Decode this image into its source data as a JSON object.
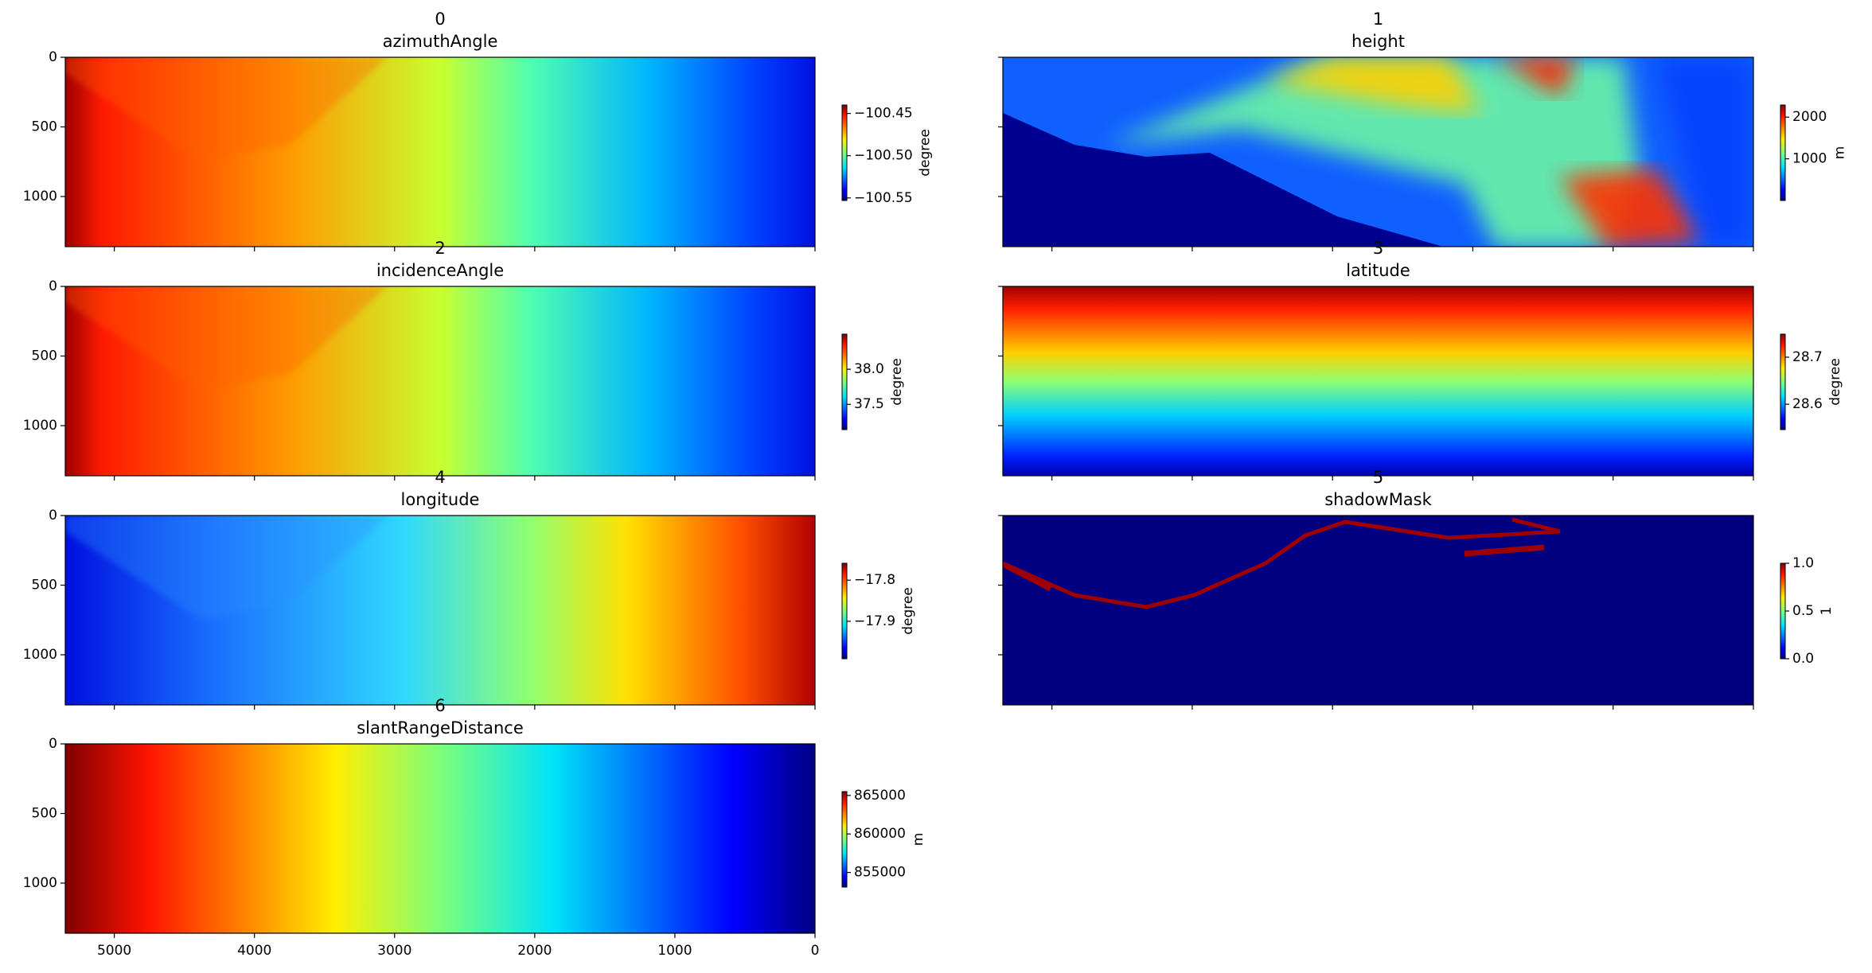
{
  "chart_data": [
    {
      "type": "heatmap",
      "index": "0",
      "title": "azimuthAngle",
      "pattern": "horizontal",
      "reverse": true,
      "xlim": [
        5350,
        0
      ],
      "xticks": [
        5000,
        4000,
        3000,
        2000,
        1000,
        0
      ],
      "ylim": [
        1360,
        0
      ],
      "yticks": [
        0,
        500,
        1000
      ],
      "colorbar": {
        "label": "degree",
        "lim": [
          -100.553,
          -100.44
        ],
        "ticks": [
          {
            "value": -100.45,
            "label": "−100.45"
          },
          {
            "value": -100.5,
            "label": "−100.50"
          },
          {
            "value": -100.55,
            "label": "−100.55"
          }
        ]
      }
    },
    {
      "type": "heatmap",
      "index": "1",
      "title": "height",
      "pattern": "terrain",
      "xlim": [
        5350,
        0
      ],
      "xticks": [
        5000,
        4000,
        3000,
        2000,
        1000,
        0
      ],
      "ylim": [
        1360,
        0
      ],
      "yticks": [
        0,
        500,
        1000
      ],
      "colorbar": {
        "label": "m",
        "lim": [
          0,
          2290
        ],
        "ticks": [
          2000,
          1000
        ]
      }
    },
    {
      "type": "heatmap",
      "index": "2",
      "title": "incidenceAngle",
      "pattern": "horizontal",
      "reverse": true,
      "xlim": [
        5350,
        0
      ],
      "xticks": [
        5000,
        4000,
        3000,
        2000,
        1000,
        0
      ],
      "ylim": [
        1360,
        0
      ],
      "yticks": [
        0,
        500,
        1000
      ],
      "colorbar": {
        "label": "degree",
        "lim": [
          37.14,
          38.5
        ],
        "ticks": [
          {
            "value": 38,
            "label": "38.0"
          },
          37.5
        ]
      }
    },
    {
      "type": "heatmap",
      "index": "3",
      "title": "latitude",
      "pattern": "vertical",
      "xlim": [
        5350,
        0
      ],
      "xticks": [
        5000,
        4000,
        3000,
        2000,
        1000,
        0
      ],
      "ylim": [
        1360,
        0
      ],
      "yticks": [
        0,
        500,
        1000
      ],
      "colorbar": {
        "label": "degree",
        "lim": [
          28.546,
          28.749
        ],
        "ticks": [
          28.7,
          28.6
        ]
      }
    },
    {
      "type": "heatmap",
      "index": "4",
      "title": "longitude",
      "pattern": "horizontal",
      "reverse": false,
      "xlim": [
        5350,
        0
      ],
      "xticks": [
        5000,
        4000,
        3000,
        2000,
        1000,
        0
      ],
      "ylim": [
        1360,
        0
      ],
      "yticks": [
        0,
        500,
        1000
      ],
      "colorbar": {
        "label": "degree",
        "lim": [
          -17.991,
          -17.759
        ],
        "ticks": [
          {
            "value": -17.8,
            "label": "−17.8"
          },
          {
            "value": -17.9,
            "label": "−17.9"
          }
        ]
      }
    },
    {
      "type": "heatmap",
      "index": "5",
      "title": "shadowMask",
      "pattern": "mask",
      "xlim": [
        5350,
        0
      ],
      "xticks": [
        5000,
        4000,
        3000,
        2000,
        1000,
        0
      ],
      "ylim": [
        1360,
        0
      ],
      "yticks": [
        0,
        500,
        1000
      ],
      "colorbar": {
        "label": "1",
        "lim": [
          0,
          1
        ],
        "ticks": [
          {
            "value": 1,
            "label": "1.0"
          },
          0.5,
          {
            "value": 0,
            "label": "0.0"
          }
        ]
      }
    },
    {
      "type": "heatmap",
      "index": "6",
      "title": "slantRangeDistance",
      "pattern": "full",
      "reverse": true,
      "xlim": [
        5350,
        0
      ],
      "xticks": [
        5000,
        4000,
        3000,
        2000,
        1000,
        0
      ],
      "ylim": [
        1360,
        0
      ],
      "yticks": [
        0,
        500,
        1000
      ],
      "colorbar": {
        "label": "m",
        "lim": [
          853100,
          865500
        ],
        "ticks": [
          865000,
          860000,
          855000
        ]
      }
    }
  ]
}
